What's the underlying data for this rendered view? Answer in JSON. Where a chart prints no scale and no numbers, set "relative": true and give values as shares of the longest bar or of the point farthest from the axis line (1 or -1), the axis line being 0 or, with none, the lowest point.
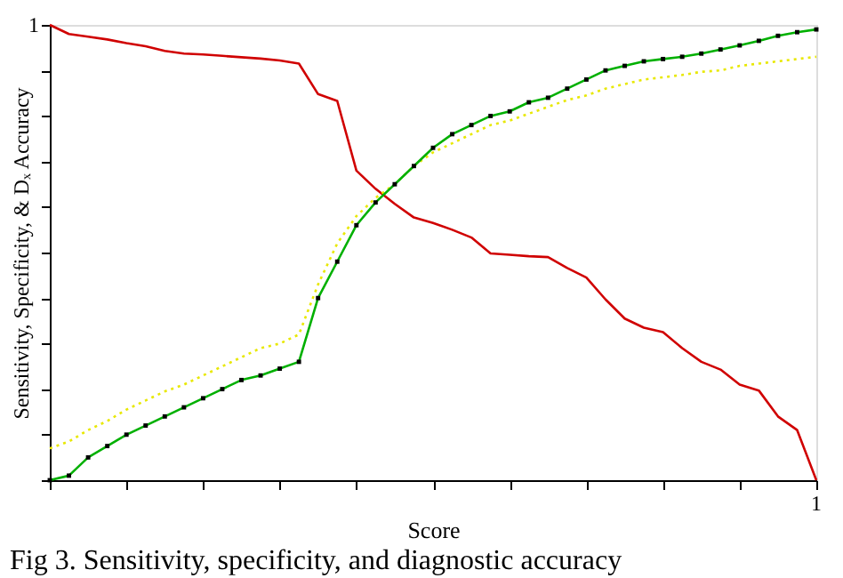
{
  "chart_data": {
    "type": "line",
    "relative": true,
    "xlabel": "Score",
    "ylabel": "Sensitivity, Specificity, & Dₓ Accuracy",
    "grid": false,
    "categories": [
      null,
      null,
      null,
      null,
      null,
      null,
      null,
      null,
      null,
      null,
      null,
      null,
      null,
      null,
      null,
      null,
      null,
      null,
      null,
      null,
      null,
      null,
      null,
      null,
      null,
      null,
      null,
      null,
      null,
      null,
      null,
      null,
      null,
      null,
      null,
      null,
      null,
      null,
      null,
      null,
      null
    ],
    "annotations": [
      "1",
      "1",
      "Fig 3. Sensitivity, specificity, and diagnostic accuracy"
    ],
    "series": [
      {
        "color": "#d00000",
        "line_style": "solid",
        "marker": "none",
        "values": [
          1,
          0.98,
          0.974,
          0.968,
          0.96,
          0.953,
          0.943,
          0.937,
          0.935,
          0.932,
          0.929,
          0.926,
          0.922,
          0.915,
          0.848,
          0.833,
          0.68,
          0.64,
          0.607,
          0.577,
          0.565,
          0.55,
          0.533,
          0.498,
          0.495,
          0.492,
          0.49,
          0.466,
          0.445,
          0.397,
          0.355,
          0.335,
          0.325,
          0.29,
          0.26,
          0.243,
          0.21,
          0.197,
          0.14,
          0.11,
          0
        ]
      },
      {
        "color": "#e8e800",
        "line_style": "dotted",
        "marker": "none",
        "values": [
          0.07,
          0.085,
          0.11,
          0.13,
          0.155,
          0.175,
          0.195,
          0.21,
          0.23,
          0.25,
          0.27,
          0.29,
          0.3,
          0.32,
          0.43,
          0.52,
          0.58,
          0.62,
          0.65,
          0.69,
          0.72,
          0.74,
          0.76,
          0.78,
          0.79,
          0.805,
          0.82,
          0.835,
          0.845,
          0.86,
          0.87,
          0.88,
          0.885,
          0.89,
          0.897,
          0.9,
          0.91,
          0.915,
          0.92,
          0.925,
          0.93
        ]
      },
      {
        "color": "#00b000",
        "line_style": "solid",
        "marker": "square",
        "values": [
          0,
          0.01,
          0.05,
          0.075,
          0.1,
          0.12,
          0.14,
          0.16,
          0.18,
          0.2,
          0.22,
          0.23,
          0.245,
          0.26,
          0.4,
          0.48,
          0.56,
          0.61,
          0.65,
          0.69,
          0.73,
          0.76,
          0.78,
          0.8,
          0.81,
          0.83,
          0.84,
          0.86,
          0.88,
          0.9,
          0.91,
          0.92,
          0.925,
          0.93,
          0.937,
          0.946,
          0.955,
          0.965,
          0.976,
          0.984,
          0.99
        ]
      }
    ]
  }
}
